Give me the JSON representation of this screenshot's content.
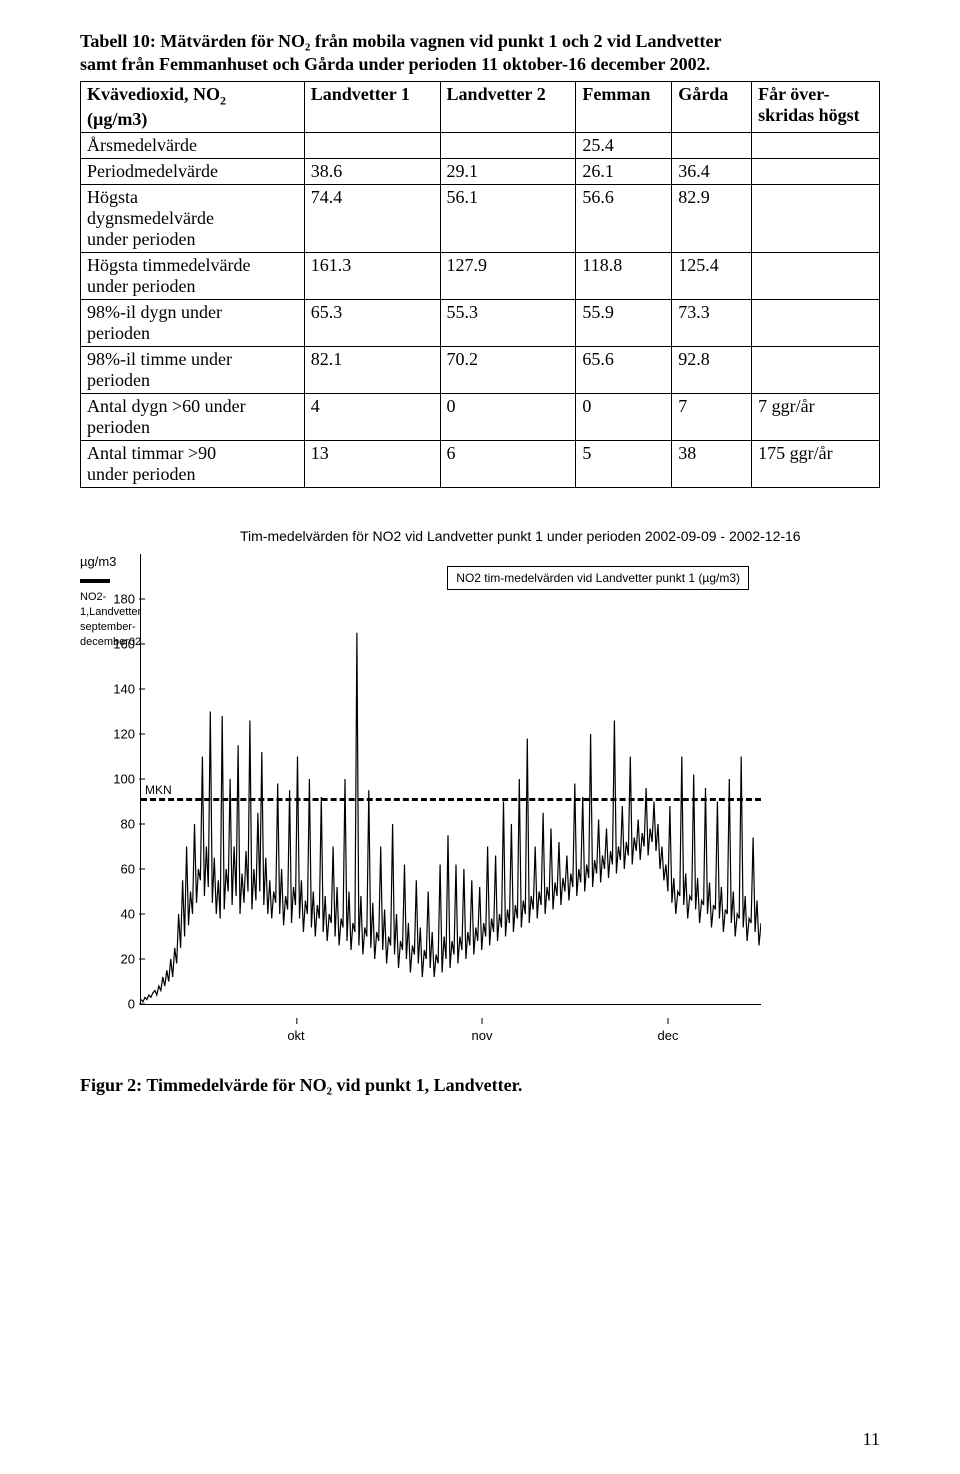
{
  "table_caption_line1": "Tabell 10: Mätvärden för NO₂ från mobila vagnen vid punkt 1 och 2 vid Landvetter",
  "table_caption_line2": "samt från Femmanhuset och Gårda under perioden 11 oktober-16 december 2002.",
  "headers": {
    "c0a": "Kvävedioxid, NO",
    "c0b": "(µg/m3)",
    "c1": "Landvetter 1",
    "c2": "Landvetter 2",
    "c3": "Femman",
    "c4": "Gårda",
    "c5a": "Får över-",
    "c5b": "skridas högst"
  },
  "rows": [
    {
      "label": "Årsmedelvärde",
      "c1": "",
      "c2": "",
      "c3": "25.4",
      "c4": "",
      "c5": ""
    },
    {
      "label": "Periodmedelvärde",
      "c1": "38.6",
      "c2": "29.1",
      "c3": "26.1",
      "c4": "36.4",
      "c5": ""
    },
    {
      "label": "Högsta\ndygnsmedelvärde\nunder perioden",
      "c1": "74.4",
      "c2": "56.1",
      "c3": "56.6",
      "c4": "82.9",
      "c5": ""
    },
    {
      "label": "Högsta timmedelvärde\nunder perioden",
      "c1": "161.3",
      "c2": "127.9",
      "c3": "118.8",
      "c4": "125.4",
      "c5": ""
    },
    {
      "label": "98%-il dygn under\nperioden",
      "c1": "65.3",
      "c2": "55.3",
      "c3": "55.9",
      "c4": "73.3",
      "c5": ""
    },
    {
      "label": "98%-il timme under\nperioden",
      "c1": "82.1",
      "c2": "70.2",
      "c3": "65.6",
      "c4": "92.8",
      "c5": ""
    },
    {
      "label": "Antal dygn >60 under\nperioden",
      "c1": "4",
      "c2": "0",
      "c3": "0",
      "c4": "7",
      "c5": "7 ggr/år"
    },
    {
      "label": "Antal timmar >90\nunder perioden",
      "c1": "13",
      "c2": "6",
      "c3": "5",
      "c4": "38",
      "c5": "175 ggr/år"
    }
  ],
  "chart": {
    "title": "Tim-medelvärden för NO2 vid Landvetter punkt 1 under perioden   2002-09-09 - 2002-12-16",
    "y_unit": "µg/m3",
    "legend_series": "NO2-1,Landvetter september-december02",
    "legend_box": "NO2 tim-medelvärden vid Landvetter punkt 1 (µg/m3)",
    "mkn_label": "MKN",
    "mkn_value": 90,
    "ylim": [
      0,
      200
    ],
    "yticks": [
      0,
      20,
      40,
      60,
      80,
      100,
      120,
      140,
      160,
      180
    ],
    "xticks": [
      "okt",
      "nov",
      "dec"
    ],
    "xtick_pos_pct": [
      25,
      55,
      85
    ],
    "series_color": "#000000",
    "background_color": "#ffffff",
    "data_points": [
      2,
      1,
      3,
      2,
      4,
      3,
      5,
      6,
      4,
      8,
      6,
      12,
      8,
      15,
      10,
      20,
      12,
      25,
      18,
      40,
      25,
      55,
      30,
      70,
      35,
      50,
      40,
      80,
      45,
      60,
      55,
      110,
      48,
      70,
      52,
      130,
      45,
      65,
      40,
      55,
      38,
      128,
      42,
      60,
      50,
      100,
      44,
      70,
      48,
      115,
      40,
      58,
      45,
      68,
      50,
      126,
      42,
      60,
      46,
      85,
      50,
      112,
      44,
      65,
      40,
      55,
      38,
      50,
      45,
      98,
      40,
      60,
      35,
      48,
      42,
      95,
      36,
      52,
      44,
      110,
      38,
      55,
      32,
      46,
      40,
      100,
      34,
      50,
      30,
      44,
      38,
      92,
      32,
      48,
      28,
      40,
      36,
      70,
      30,
      52,
      26,
      38,
      34,
      100,
      28,
      50,
      24,
      36,
      32,
      165,
      26,
      48,
      22,
      34,
      30,
      95,
      25,
      45,
      20,
      32,
      28,
      70,
      24,
      42,
      18,
      30,
      26,
      80,
      22,
      40,
      16,
      28,
      24,
      62,
      20,
      36,
      14,
      26,
      22,
      55,
      18,
      34,
      12,
      24,
      20,
      50,
      16,
      32,
      12,
      22,
      18,
      62,
      14,
      30,
      20,
      75,
      16,
      28,
      22,
      62,
      18,
      30,
      24,
      60,
      20,
      32,
      26,
      55,
      22,
      34,
      28,
      52,
      24,
      36,
      30,
      70,
      26,
      38,
      32,
      66,
      28,
      40,
      34,
      90,
      30,
      42,
      36,
      80,
      32,
      44,
      38,
      100,
      34,
      46,
      40,
      118,
      36,
      48,
      42,
      70,
      38,
      50,
      44,
      85,
      40,
      52,
      46,
      78,
      42,
      54,
      48,
      72,
      44,
      56,
      50,
      66,
      46,
      58,
      52,
      98,
      48,
      60,
      54,
      92,
      50,
      62,
      56,
      120,
      52,
      64,
      58,
      82,
      54,
      66,
      60,
      78,
      56,
      68,
      62,
      126,
      58,
      70,
      64,
      88,
      60,
      72,
      66,
      110,
      62,
      74,
      68,
      82,
      64,
      76,
      70,
      96,
      66,
      78,
      72,
      90,
      68,
      80,
      60,
      70,
      55,
      62,
      50,
      88,
      45,
      56,
      40,
      50,
      48,
      110,
      44,
      58,
      38,
      48,
      46,
      102,
      42,
      56,
      36,
      46,
      44,
      96,
      40,
      54,
      34,
      44,
      42,
      90,
      38,
      52,
      32,
      42,
      40,
      100,
      36,
      50,
      30,
      40,
      38,
      110,
      34,
      48,
      28,
      38,
      36,
      74,
      32,
      46,
      26,
      36
    ]
  },
  "figure_caption": "Figur 2: Timmedelvärde för NO₂ vid punkt 1, Landvetter.",
  "page_number": "11"
}
